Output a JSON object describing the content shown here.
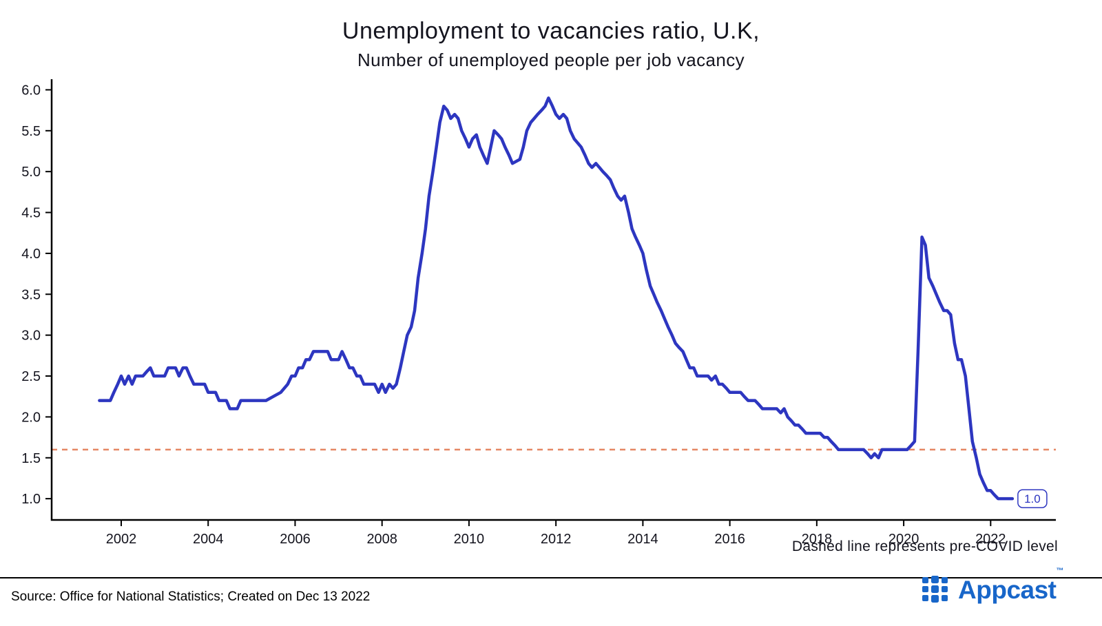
{
  "title": "Unemployment to vacancies ratio, U.K,",
  "subtitle": "Number of unemployed people per job vacancy",
  "annotation": "Dashed line represents pre-COVID level",
  "source": "Source: Office for National Statistics; Created on Dec 13 2022",
  "end_label": "1.0",
  "brand": {
    "name": "Appcast",
    "tm": "™",
    "color": "#1866c9"
  },
  "colors": {
    "line": "#2d36c0",
    "dashed": "#e58663",
    "axis": "#000000",
    "tick_text": "#14141e",
    "end_label_box": "#2d36c0"
  },
  "chart_data": {
    "type": "line",
    "title": "Unemployment to vacancies ratio, U.K,",
    "subtitle": "Number of unemployed people per job vacancy",
    "xlabel": "",
    "ylabel": "",
    "grid": false,
    "legend_position": "none",
    "xlim": [
      2000.4,
      2023.5
    ],
    "ylim": [
      0.74,
      6.13
    ],
    "x_ticks": [
      2002,
      2004,
      2006,
      2008,
      2010,
      2012,
      2014,
      2016,
      2018,
      2020,
      2022
    ],
    "y_ticks": [
      1.0,
      1.5,
      2.0,
      2.5,
      3.0,
      3.5,
      4.0,
      4.5,
      5.0,
      5.5,
      6.0
    ],
    "reference_line": {
      "y": 1.6,
      "style": "dashed",
      "meaning": "pre-COVID level"
    },
    "series": [
      {
        "name": "Unemployed people per job vacancy",
        "points": [
          [
            2001.5,
            2.2
          ],
          [
            2001.75,
            2.2
          ],
          [
            2001.83,
            2.3
          ],
          [
            2001.92,
            2.4
          ],
          [
            2002.0,
            2.5
          ],
          [
            2002.08,
            2.4
          ],
          [
            2002.17,
            2.5
          ],
          [
            2002.25,
            2.4
          ],
          [
            2002.33,
            2.5
          ],
          [
            2002.5,
            2.5
          ],
          [
            2002.58,
            2.55
          ],
          [
            2002.67,
            2.6
          ],
          [
            2002.75,
            2.5
          ],
          [
            2003.0,
            2.5
          ],
          [
            2003.08,
            2.6
          ],
          [
            2003.25,
            2.6
          ],
          [
            2003.33,
            2.5
          ],
          [
            2003.42,
            2.6
          ],
          [
            2003.5,
            2.6
          ],
          [
            2003.58,
            2.5
          ],
          [
            2003.67,
            2.4
          ],
          [
            2003.92,
            2.4
          ],
          [
            2004.0,
            2.3
          ],
          [
            2004.17,
            2.3
          ],
          [
            2004.25,
            2.2
          ],
          [
            2004.42,
            2.2
          ],
          [
            2004.5,
            2.1
          ],
          [
            2004.67,
            2.1
          ],
          [
            2004.75,
            2.2
          ],
          [
            2005.33,
            2.2
          ],
          [
            2005.5,
            2.25
          ],
          [
            2005.67,
            2.3
          ],
          [
            2005.83,
            2.4
          ],
          [
            2005.92,
            2.5
          ],
          [
            2006.0,
            2.5
          ],
          [
            2006.08,
            2.6
          ],
          [
            2006.17,
            2.6
          ],
          [
            2006.25,
            2.7
          ],
          [
            2006.33,
            2.7
          ],
          [
            2006.42,
            2.8
          ],
          [
            2006.75,
            2.8
          ],
          [
            2006.83,
            2.7
          ],
          [
            2007.0,
            2.7
          ],
          [
            2007.08,
            2.8
          ],
          [
            2007.17,
            2.7
          ],
          [
            2007.25,
            2.6
          ],
          [
            2007.33,
            2.6
          ],
          [
            2007.42,
            2.5
          ],
          [
            2007.5,
            2.5
          ],
          [
            2007.58,
            2.4
          ],
          [
            2007.83,
            2.4
          ],
          [
            2007.92,
            2.3
          ],
          [
            2008.0,
            2.4
          ],
          [
            2008.08,
            2.3
          ],
          [
            2008.17,
            2.4
          ],
          [
            2008.25,
            2.35
          ],
          [
            2008.33,
            2.4
          ],
          [
            2008.42,
            2.6
          ],
          [
            2008.5,
            2.8
          ],
          [
            2008.58,
            3.0
          ],
          [
            2008.67,
            3.1
          ],
          [
            2008.75,
            3.3
          ],
          [
            2008.83,
            3.7
          ],
          [
            2008.92,
            4.0
          ],
          [
            2009.0,
            4.3
          ],
          [
            2009.08,
            4.7
          ],
          [
            2009.17,
            5.0
          ],
          [
            2009.25,
            5.3
          ],
          [
            2009.33,
            5.6
          ],
          [
            2009.42,
            5.8
          ],
          [
            2009.5,
            5.75
          ],
          [
            2009.58,
            5.65
          ],
          [
            2009.67,
            5.7
          ],
          [
            2009.75,
            5.65
          ],
          [
            2009.83,
            5.5
          ],
          [
            2009.92,
            5.4
          ],
          [
            2010.0,
            5.3
          ],
          [
            2010.08,
            5.4
          ],
          [
            2010.17,
            5.45
          ],
          [
            2010.25,
            5.3
          ],
          [
            2010.33,
            5.2
          ],
          [
            2010.42,
            5.1
          ],
          [
            2010.5,
            5.3
          ],
          [
            2010.58,
            5.5
          ],
          [
            2010.67,
            5.45
          ],
          [
            2010.75,
            5.4
          ],
          [
            2010.83,
            5.3
          ],
          [
            2010.92,
            5.2
          ],
          [
            2011.0,
            5.1
          ],
          [
            2011.17,
            5.15
          ],
          [
            2011.25,
            5.3
          ],
          [
            2011.33,
            5.5
          ],
          [
            2011.42,
            5.6
          ],
          [
            2011.5,
            5.65
          ],
          [
            2011.58,
            5.7
          ],
          [
            2011.67,
            5.75
          ],
          [
            2011.75,
            5.8
          ],
          [
            2011.83,
            5.9
          ],
          [
            2011.92,
            5.8
          ],
          [
            2012.0,
            5.7
          ],
          [
            2012.08,
            5.65
          ],
          [
            2012.17,
            5.7
          ],
          [
            2012.25,
            5.65
          ],
          [
            2012.33,
            5.5
          ],
          [
            2012.42,
            5.4
          ],
          [
            2012.5,
            5.35
          ],
          [
            2012.58,
            5.3
          ],
          [
            2012.67,
            5.2
          ],
          [
            2012.75,
            5.1
          ],
          [
            2012.83,
            5.05
          ],
          [
            2012.92,
            5.1
          ],
          [
            2013.0,
            5.05
          ],
          [
            2013.08,
            5.0
          ],
          [
            2013.17,
            4.95
          ],
          [
            2013.25,
            4.9
          ],
          [
            2013.33,
            4.8
          ],
          [
            2013.42,
            4.7
          ],
          [
            2013.5,
            4.65
          ],
          [
            2013.58,
            4.7
          ],
          [
            2013.67,
            4.5
          ],
          [
            2013.75,
            4.3
          ],
          [
            2013.83,
            4.2
          ],
          [
            2013.92,
            4.1
          ],
          [
            2014.0,
            4.0
          ],
          [
            2014.08,
            3.8
          ],
          [
            2014.17,
            3.6
          ],
          [
            2014.25,
            3.5
          ],
          [
            2014.33,
            3.4
          ],
          [
            2014.42,
            3.3
          ],
          [
            2014.5,
            3.2
          ],
          [
            2014.58,
            3.1
          ],
          [
            2014.67,
            3.0
          ],
          [
            2014.75,
            2.9
          ],
          [
            2014.83,
            2.85
          ],
          [
            2014.92,
            2.8
          ],
          [
            2015.0,
            2.7
          ],
          [
            2015.08,
            2.6
          ],
          [
            2015.17,
            2.6
          ],
          [
            2015.25,
            2.5
          ],
          [
            2015.5,
            2.5
          ],
          [
            2015.58,
            2.45
          ],
          [
            2015.67,
            2.5
          ],
          [
            2015.75,
            2.4
          ],
          [
            2015.83,
            2.4
          ],
          [
            2015.92,
            2.35
          ],
          [
            2016.0,
            2.3
          ],
          [
            2016.25,
            2.3
          ],
          [
            2016.33,
            2.25
          ],
          [
            2016.42,
            2.2
          ],
          [
            2016.58,
            2.2
          ],
          [
            2016.67,
            2.15
          ],
          [
            2016.75,
            2.1
          ],
          [
            2017.08,
            2.1
          ],
          [
            2017.17,
            2.05
          ],
          [
            2017.25,
            2.1
          ],
          [
            2017.33,
            2.0
          ],
          [
            2017.42,
            1.95
          ],
          [
            2017.5,
            1.9
          ],
          [
            2017.58,
            1.9
          ],
          [
            2017.67,
            1.85
          ],
          [
            2017.75,
            1.8
          ],
          [
            2018.08,
            1.8
          ],
          [
            2018.17,
            1.75
          ],
          [
            2018.25,
            1.75
          ],
          [
            2018.33,
            1.7
          ],
          [
            2018.42,
            1.65
          ],
          [
            2018.5,
            1.6
          ],
          [
            2019.08,
            1.6
          ],
          [
            2019.17,
            1.55
          ],
          [
            2019.25,
            1.5
          ],
          [
            2019.33,
            1.55
          ],
          [
            2019.42,
            1.5
          ],
          [
            2019.5,
            1.6
          ],
          [
            2020.08,
            1.6
          ],
          [
            2020.17,
            1.65
          ],
          [
            2020.25,
            1.7
          ],
          [
            2020.33,
            2.8
          ],
          [
            2020.42,
            4.2
          ],
          [
            2020.5,
            4.1
          ],
          [
            2020.58,
            3.7
          ],
          [
            2020.67,
            3.6
          ],
          [
            2020.75,
            3.5
          ],
          [
            2020.83,
            3.4
          ],
          [
            2020.92,
            3.3
          ],
          [
            2021.0,
            3.3
          ],
          [
            2021.08,
            3.25
          ],
          [
            2021.17,
            2.9
          ],
          [
            2021.25,
            2.7
          ],
          [
            2021.33,
            2.7
          ],
          [
            2021.42,
            2.5
          ],
          [
            2021.5,
            2.1
          ],
          [
            2021.58,
            1.7
          ],
          [
            2021.67,
            1.5
          ],
          [
            2021.75,
            1.3
          ],
          [
            2021.83,
            1.2
          ],
          [
            2021.92,
            1.1
          ],
          [
            2022.0,
            1.1
          ],
          [
            2022.08,
            1.05
          ],
          [
            2022.17,
            1.0
          ],
          [
            2022.5,
            1.0
          ]
        ]
      }
    ]
  }
}
